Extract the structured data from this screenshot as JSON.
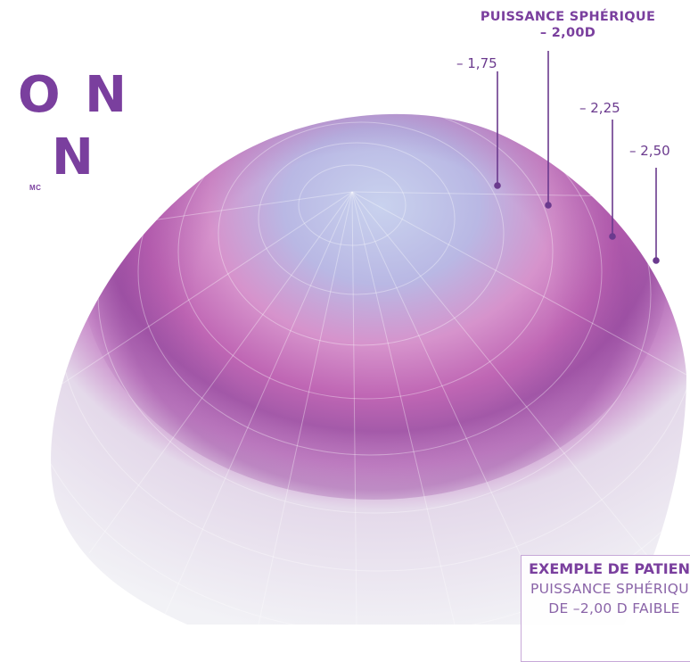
{
  "headline": {
    "line1": "O N",
    "line2": "N",
    "trademark": "MC"
  },
  "power_title": {
    "line1": "PUISSANCE SPHÉRIQUE",
    "line2": "– 2,00D"
  },
  "power_labels": [
    "– 1,75",
    "– 2,25",
    "– 2,50"
  ],
  "patient_example": {
    "title": "EXEMPLE DE PATIENT",
    "line1": "PUISSANCE SPHÉRIQUE",
    "line2": "DE –2,00 D FAIBLE"
  },
  "colors": {
    "brand_purple": "#7a3f9e",
    "lens_pink": "#c06ab8",
    "lens_blue": "#c7cfea"
  },
  "icon": "contact-lens-illustration"
}
